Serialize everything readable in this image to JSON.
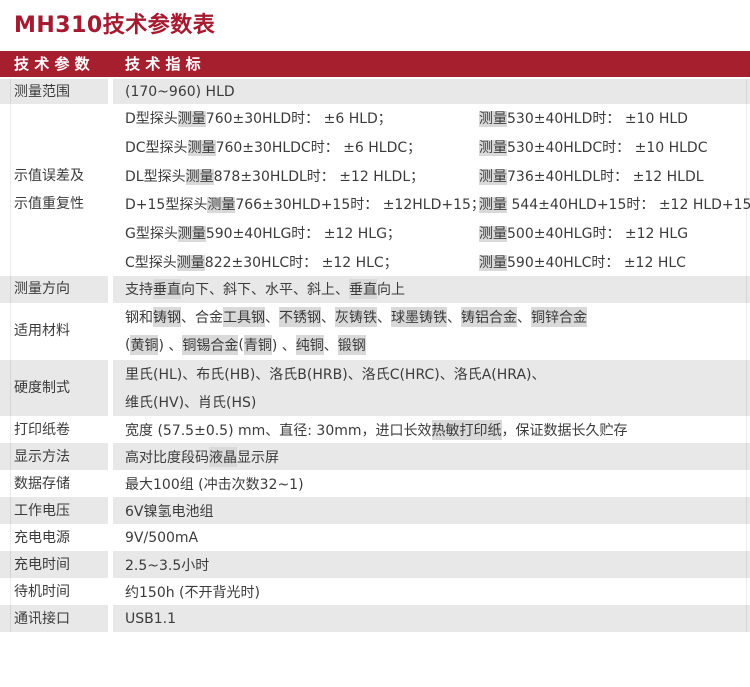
{
  "page": {
    "title": "MH310技术参数表",
    "accent_color": "#a6192e",
    "header_bg_color": "#a51f2f",
    "row_alt_color": "#e8e8e8",
    "highlight_color": "#d9d9d9"
  },
  "table": {
    "header": {
      "col1": "技 术 参 数",
      "col2": "技 术 指 标"
    },
    "highlight_terms": [
      "球墨铸铁",
      "铜锡合金",
      "铜锌合金",
      "铸铝合金",
      "热敏打印纸",
      "工具钢",
      "不锈钢",
      "灰铸铁",
      "测量",
      "垂直",
      "铸钢",
      "黄铜",
      "青铜",
      "纯铜",
      "锻钢",
      "液晶"
    ],
    "rows": [
      {
        "label_lines": [
          "测量范围"
        ],
        "shaded": true,
        "lines": [
          "(170~960) HLD"
        ]
      },
      {
        "label_lines": [
          "示值误差及",
          "示值重复性"
        ],
        "shaded": false,
        "pairs": [
          [
            "D型探头测量760±30HLD时： ±6 HLD；",
            "测量530±40HLD时： ±10 HLD"
          ],
          [
            "DC型探头测量760±30HLDC时： ±6 HLDC；",
            "测量530±40HLDC时： ±10 HLDC"
          ],
          [
            "DL型探头测量878±30HLDL时： ±12 HLDL；",
            "测量736±40HLDL时： ±12 HLDL"
          ],
          [
            "D+15型探头测量766±30HLD+15时： ±12HLD+15；",
            "测量 544±40HLD+15时： ±12 HLD+15"
          ],
          [
            "G型探头测量590±40HLG时： ±12 HLG；",
            "测量500±40HLG时： ±12 HLG"
          ],
          [
            "C型探头测量822±30HLC时： ±12 HLC；",
            "测量590±40HLC时： ±12 HLC"
          ]
        ]
      },
      {
        "label_lines": [
          "测量方向"
        ],
        "shaded": true,
        "lines": [
          "支持垂直向下、斜下、水平、斜上、垂直向上"
        ]
      },
      {
        "label_lines": [
          "适用材料"
        ],
        "shaded": false,
        "lines": [
          "钢和铸钢、合金工具钢、不锈钢、灰铸铁、球墨铸铁、铸铝合金、铜锌合金",
          "(黄铜) 、铜锡合金 (青铜) 、纯铜、锻钢"
        ]
      },
      {
        "label_lines": [
          "硬度制式"
        ],
        "shaded": true,
        "lines": [
          "里氏(HL)、布氏(HB)、洛氏B(HRB)、洛氏C(HRC)、洛氏A(HRA)、",
          "维氏(HV)、肖氏(HS)"
        ]
      },
      {
        "label_lines": [
          "打印纸卷"
        ],
        "shaded": false,
        "lines": [
          "宽度 (57.5±0.5) mm、直径: 30mm，进口长效热敏打印纸，保证数据长久贮存"
        ]
      },
      {
        "label_lines": [
          "显示方法"
        ],
        "shaded": true,
        "lines": [
          "高对比度段码液晶显示屏"
        ]
      },
      {
        "label_lines": [
          "数据存储"
        ],
        "shaded": false,
        "lines": [
          "最大100组 (冲击次数32~1)"
        ]
      },
      {
        "label_lines": [
          "工作电压"
        ],
        "shaded": true,
        "lines": [
          "6V镍氢电池组"
        ]
      },
      {
        "label_lines": [
          "充电电源"
        ],
        "shaded": false,
        "lines": [
          "9V/500mA"
        ]
      },
      {
        "label_lines": [
          "充电时间"
        ],
        "shaded": true,
        "lines": [
          "2.5~3.5小时"
        ]
      },
      {
        "label_lines": [
          "待机时间"
        ],
        "shaded": false,
        "lines": [
          "约150h (不开背光时)"
        ]
      },
      {
        "label_lines": [
          "通讯接口"
        ],
        "shaded": true,
        "lines": [
          "USB1.1"
        ]
      }
    ]
  }
}
